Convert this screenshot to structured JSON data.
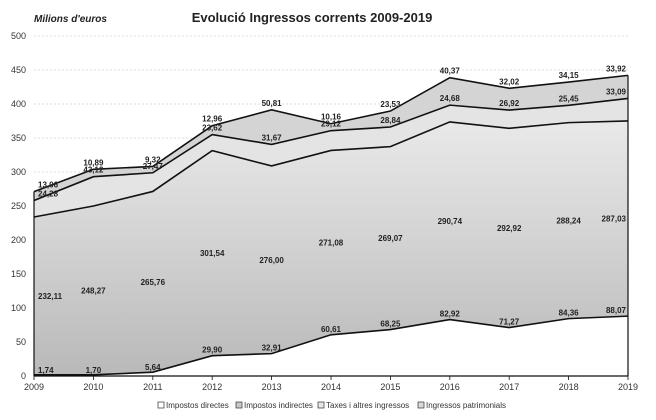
{
  "chart_data": {
    "type": "area",
    "stacked": true,
    "title": "Evolució Ingressos corrents 2009-2019",
    "ylabel": "Milions d'euros",
    "xlabel": "",
    "x": [
      "2009",
      "2010",
      "2011",
      "2012",
      "2013",
      "2014",
      "2015",
      "2016",
      "2017",
      "2018",
      "2019"
    ],
    "ylim": [
      0,
      500
    ],
    "yticks": [
      0,
      50,
      100,
      150,
      200,
      250,
      300,
      350,
      400,
      450,
      500
    ],
    "grid": true,
    "legend_position": "bottom",
    "series": [
      {
        "name": "Impostos directes",
        "values": [
          1.74,
          1.7,
          5.64,
          29.9,
          32.91,
          60.61,
          68.25,
          82.92,
          71.27,
          84.36,
          88.07
        ],
        "labels": [
          "1,74",
          "1,70",
          "5,64",
          "29,90",
          "32,91",
          "60,61",
          "68,25",
          "82,92",
          "71,27",
          "84,36",
          "88,07"
        ],
        "color": "#ffffff"
      },
      {
        "name": "Impostos indirectes",
        "values": [
          232.11,
          248.27,
          265.76,
          301.54,
          276.0,
          271.08,
          269.07,
          290.74,
          292.92,
          288.24,
          287.03
        ],
        "labels": [
          "232,11",
          "248,27",
          "265,76",
          "301,54",
          "276,00",
          "271,08",
          "269,07",
          "290,74",
          "292,92",
          "288,24",
          "287,03"
        ],
        "color": "#c9c9c9"
      },
      {
        "name": "Taxes i altres ingressos",
        "values": [
          24.28,
          43.12,
          27.47,
          23.62,
          31.67,
          29.12,
          28.84,
          24.68,
          26.92,
          25.45,
          33.09
        ],
        "labels": [
          "24,28",
          "43,12",
          "27,47",
          "23,62",
          "31,67",
          "29,12",
          "28,84",
          "24,68",
          "26,92",
          "25,45",
          "33,09"
        ],
        "color": "#e6e6e6"
      },
      {
        "name": "Ingressos patrimonials",
        "values": [
          13.06,
          10.89,
          9.32,
          12.96,
          50.81,
          10.16,
          23.53,
          40.37,
          32.02,
          34.15,
          33.92
        ],
        "labels": [
          "13,06",
          "10,89",
          "9,32",
          "12,96",
          "50,81",
          "10,16",
          "23,53",
          "40,37",
          "32,02",
          "34,15",
          "33,92"
        ],
        "color": "#d8d8d8"
      }
    ]
  }
}
